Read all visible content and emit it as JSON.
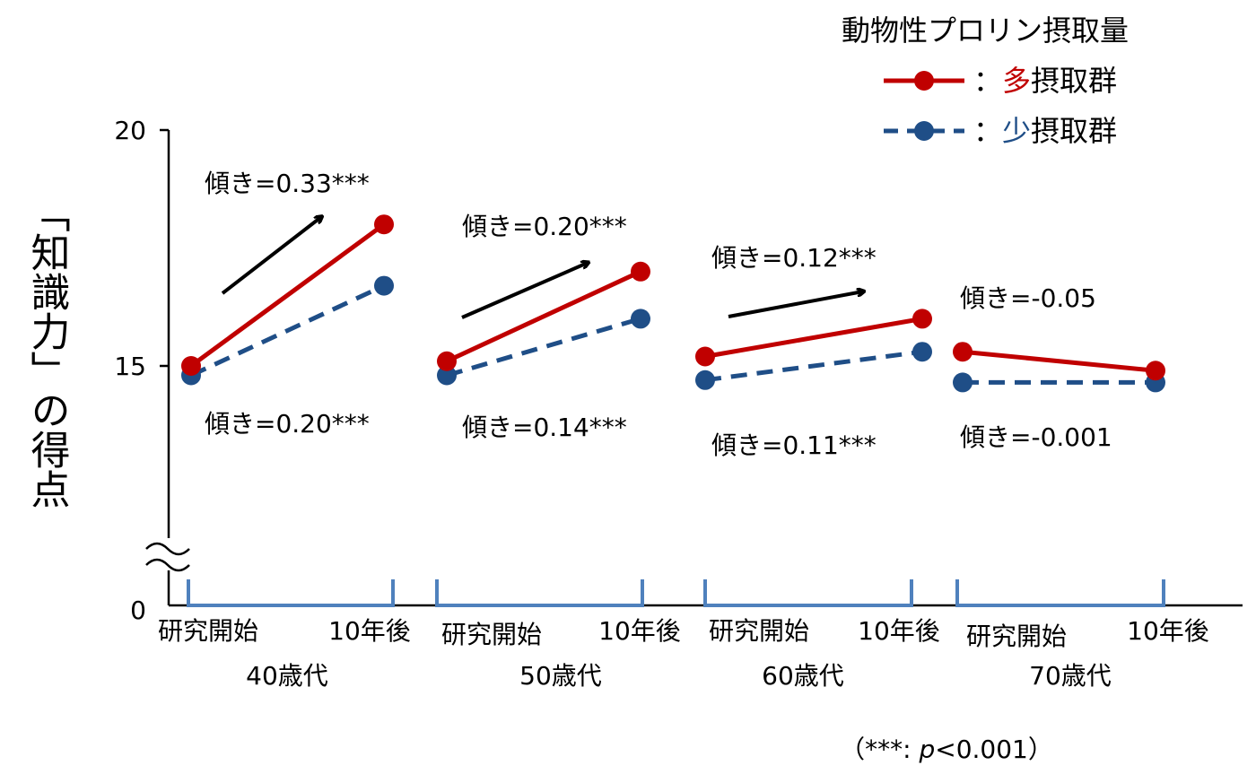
{
  "chart_data": {
    "type": "line",
    "ylabel": "「知識力」の得点",
    "y_ticks": [
      "0",
      "15",
      "20"
    ],
    "y_axis_break": true,
    "ylim": [
      0,
      20
    ],
    "x_tick_labels": [
      "研究開始",
      "10年後"
    ],
    "groups": [
      {
        "label": "40歳代",
        "high": {
          "start": 15.0,
          "end": 18.0,
          "slope_label": "傾き=0.33***"
        },
        "low": {
          "start": 14.8,
          "end": 16.7,
          "slope_label": "傾き=0.20***"
        },
        "trend_arrow": true
      },
      {
        "label": "50歳代",
        "high": {
          "start": 15.1,
          "end": 17.0,
          "slope_label": "傾き=0.20***"
        },
        "low": {
          "start": 14.8,
          "end": 16.0,
          "slope_label": "傾き=0.14***"
        },
        "trend_arrow": true
      },
      {
        "label": "60歳代",
        "high": {
          "start": 15.2,
          "end": 16.0,
          "slope_label": "傾き=0.12***"
        },
        "low": {
          "start": 14.7,
          "end": 15.3,
          "slope_label": "傾き=0.11***"
        },
        "trend_arrow": true
      },
      {
        "label": "70歳代",
        "high": {
          "start": 15.3,
          "end": 14.9,
          "slope_label": "傾き=-0.05"
        },
        "low": {
          "start": 14.65,
          "end": 14.65,
          "slope_label": "傾き=-0.001"
        },
        "trend_arrow": false
      }
    ],
    "legend": {
      "title": "動物性プロリン摂取量",
      "position": "top-right",
      "items": [
        {
          "prefix": "：",
          "highlight": "多",
          "suffix": "摂取群",
          "color": "#c00000",
          "dash": "solid"
        },
        {
          "prefix": "：",
          "highlight": "少",
          "suffix": "摂取群",
          "color": "#1f4e87",
          "dash": "dashed"
        }
      ]
    },
    "note": {
      "before": "（***: ",
      "italic": "p",
      "after": "<0.001）"
    },
    "colors": {
      "high": "#c00000",
      "low": "#1f4e87",
      "bracket": "#4f81bd",
      "axis": "#000000",
      "arrow": "#000000"
    }
  }
}
